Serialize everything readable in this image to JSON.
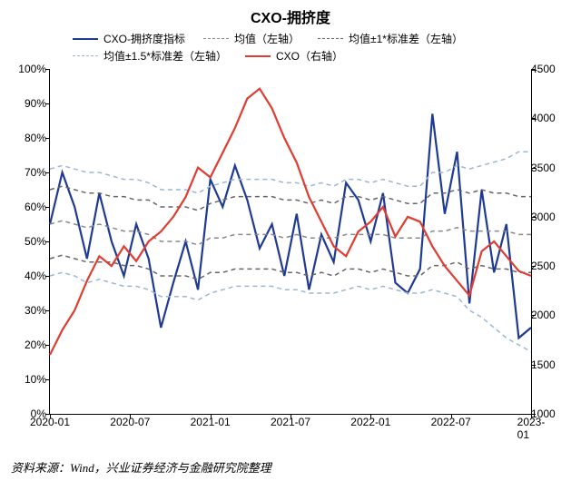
{
  "title": "CXO-拥挤度",
  "title_fontsize": 16,
  "legend_fontsize": 12,
  "axis_fontsize": 12,
  "source_fontsize": 13,
  "source_text": "资料来源：Wind，兴业证券经济与金融研究院整理",
  "background_color": "#ffffff",
  "chart": {
    "type": "line",
    "x_categories": [
      "2020-01",
      "2020-07",
      "2021-01",
      "2021-07",
      "2022-01",
      "2022-07",
      "2023-01"
    ],
    "x_range_points": 40,
    "y_left": {
      "min": 0,
      "max": 100,
      "step": 10,
      "suffix": "%"
    },
    "y_right": {
      "min": 1000,
      "max": 4500,
      "step": 500,
      "suffix": ""
    },
    "series": [
      {
        "name": "CXO-拥挤度指标",
        "label": "CXO-拥挤度指标",
        "axis": "left",
        "color": "#1f3a93",
        "width": 2.2,
        "dash": "none",
        "data": [
          55,
          70,
          60,
          45,
          64,
          50,
          40,
          55,
          45,
          25,
          38,
          50,
          36,
          68,
          60,
          72,
          62,
          48,
          55,
          40,
          58,
          36,
          52,
          44,
          67,
          62,
          50,
          64,
          38,
          35,
          42,
          87,
          58,
          76,
          32,
          65,
          41,
          55,
          22,
          25
        ]
      },
      {
        "name": "均值（左轴）",
        "label": "均值（左轴）",
        "axis": "left",
        "color": "#888888",
        "width": 1.5,
        "dash": "5,4",
        "data": [
          55,
          56,
          55,
          54,
          55,
          54,
          53,
          53,
          52,
          50,
          50,
          50,
          49,
          51,
          51,
          52,
          52,
          52,
          52,
          51,
          52,
          51,
          51,
          51,
          52,
          52,
          52,
          52,
          51,
          51,
          51,
          53,
          53,
          54,
          53,
          53,
          53,
          53,
          52,
          52
        ]
      },
      {
        "name": "均值±1*标准差（左轴）_upper",
        "label": "均值±1*标准差（左轴）",
        "axis": "left",
        "color": "#666666",
        "width": 1.5,
        "dash": "5,4",
        "data": [
          65,
          66,
          65,
          64,
          64,
          63,
          63,
          62,
          62,
          60,
          60,
          60,
          59,
          61,
          62,
          63,
          63,
          63,
          63,
          62,
          62,
          61,
          62,
          61,
          63,
          63,
          62,
          63,
          62,
          61,
          61,
          64,
          64,
          65,
          64,
          65,
          64,
          64,
          63,
          63
        ]
      },
      {
        "name": "均值±1*标准差（左轴）_lower",
        "label": "",
        "axis": "left",
        "color": "#666666",
        "width": 1.5,
        "dash": "5,4",
        "data": [
          45,
          46,
          45,
          44,
          44,
          44,
          43,
          43,
          42,
          40,
          40,
          40,
          39,
          41,
          41,
          42,
          42,
          42,
          42,
          41,
          41,
          40,
          41,
          40,
          42,
          42,
          41,
          42,
          41,
          40,
          40,
          43,
          43,
          44,
          42,
          43,
          42,
          42,
          41,
          41
        ]
      },
      {
        "name": "均值±1.5*标准差（左轴）_upper",
        "label": "均值±1.5*标准差（左轴）",
        "axis": "left",
        "color": "#9bb7d4",
        "width": 1.5,
        "dash": "5,4",
        "data": [
          71,
          72,
          71,
          70,
          70,
          69,
          68,
          68,
          67,
          65,
          65,
          65,
          64,
          66,
          67,
          68,
          68,
          68,
          68,
          67,
          67,
          66,
          67,
          66,
          68,
          68,
          67,
          68,
          67,
          66,
          66,
          70,
          70,
          72,
          71,
          72,
          73,
          74,
          76,
          76
        ]
      },
      {
        "name": "均值±1.5*标准差（左轴）_lower",
        "label": "",
        "axis": "left",
        "color": "#9bb7d4",
        "width": 1.5,
        "dash": "5,4",
        "data": [
          40,
          41,
          40,
          38,
          39,
          38,
          37,
          37,
          36,
          34,
          34,
          34,
          33,
          35,
          36,
          37,
          37,
          37,
          37,
          36,
          36,
          35,
          35,
          35,
          36,
          37,
          36,
          37,
          36,
          35,
          35,
          36,
          35,
          34,
          30,
          28,
          25,
          22,
          20,
          18
        ]
      },
      {
        "name": "CXO（右轴）",
        "label": "CXO（右轴）",
        "axis": "right",
        "color": "#e03c31",
        "width": 2.2,
        "dash": "none",
        "data": [
          1600,
          1850,
          2050,
          2350,
          2600,
          2500,
          2700,
          2550,
          2750,
          2850,
          3000,
          3200,
          3500,
          3400,
          3650,
          3900,
          4200,
          4300,
          4100,
          3800,
          3550,
          3200,
          2950,
          2700,
          2600,
          2850,
          2950,
          3100,
          2800,
          3000,
          2950,
          2700,
          2500,
          2350,
          2200,
          2650,
          2750,
          2600,
          2450,
          2400
        ]
      }
    ],
    "legend_order": [
      "CXO-拥挤度指标",
      "均值（左轴）",
      "均值±1*标准差（左轴）_upper",
      "均值±1.5*标准差（左轴）_upper",
      "CXO（右轴）"
    ]
  }
}
